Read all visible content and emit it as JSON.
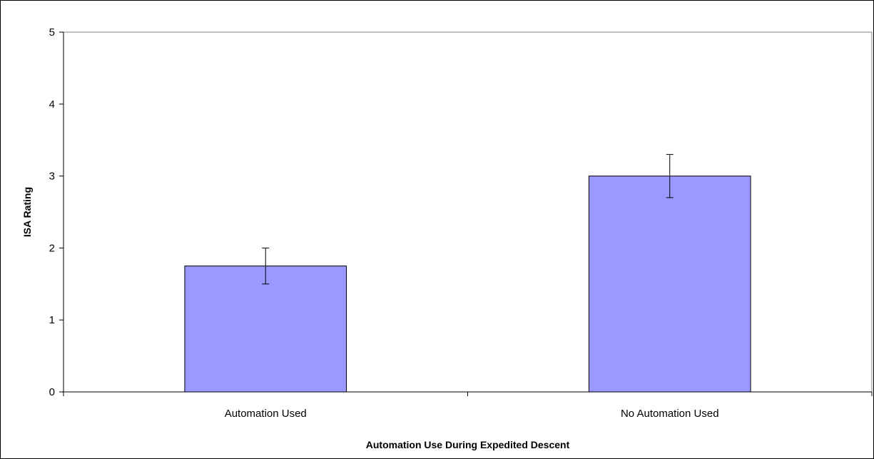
{
  "chart_data": {
    "type": "bar",
    "title": "",
    "xlabel": "Automation Use During Expedited Descent",
    "ylabel": "ISA Rating",
    "categories": [
      "Automation Used",
      "No Automation Used"
    ],
    "values": [
      1.75,
      3.0
    ],
    "error_bars": [
      {
        "low": 1.5,
        "high": 2.0
      },
      {
        "low": 2.7,
        "high": 3.3
      }
    ],
    "ylim": [
      0,
      5
    ],
    "yticks": [
      "0",
      "1",
      "2",
      "3",
      "4",
      "5"
    ],
    "grid": false,
    "legend": "none",
    "colors": {
      "bar_fill": "#9999ff",
      "bar_stroke": "#000000",
      "axis": "#808080",
      "plot_border": "#808080",
      "text": "#000000"
    }
  }
}
